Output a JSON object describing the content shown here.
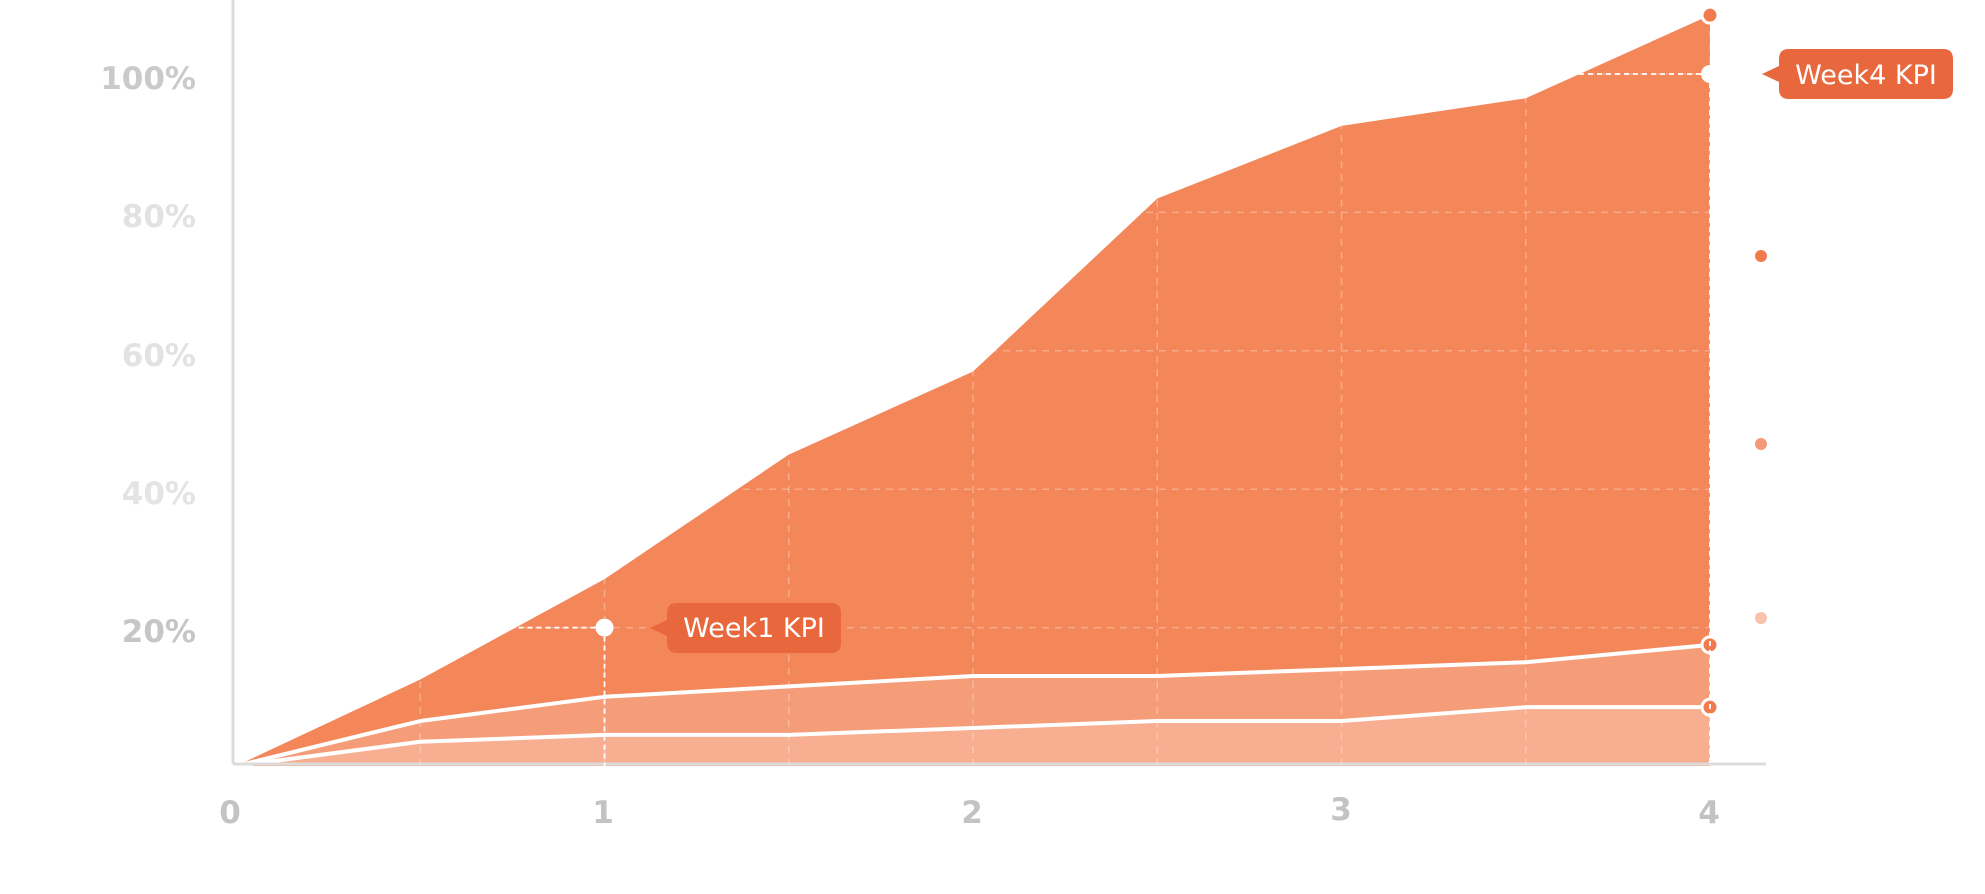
{
  "chart_data": {
    "type": "area",
    "x": [
      0,
      0.5,
      1,
      1.5,
      2,
      2.5,
      3,
      3.5,
      4
    ],
    "x_tick_labels": [
      "0",
      "1",
      "2",
      "3",
      "4"
    ],
    "y_tick_labels": [
      "20%",
      "40%",
      "60%",
      "80%",
      "100%"
    ],
    "ylim": [
      0,
      110
    ],
    "xlim": [
      0,
      4
    ],
    "grid": true,
    "series": [
      {
        "values": [
          0,
          12.5,
          27,
          45,
          57,
          82,
          92.5,
          96.5,
          108.5
        ],
        "color": "#f4875a"
      },
      {
        "values": [
          0,
          6.5,
          10,
          11.5,
          13,
          13,
          14,
          15,
          17.5
        ],
        "color": "#f59c78"
      },
      {
        "values": [
          0,
          3.5,
          4.5,
          4.5,
          5.5,
          6.5,
          6.5,
          8.5,
          8.5
        ],
        "color": "#f8ae90"
      }
    ],
    "annotations": [
      {
        "label": "Week1 KPI",
        "x": 1,
        "y": 20
      },
      {
        "label": "Week4 KPI",
        "x": 4,
        "y": 100
      }
    ],
    "colors": {
      "callout": "#e8673d",
      "accent_dot": "#f27b4e",
      "axis": "#dcdcdc",
      "tick_label": "#c3c3c3"
    }
  }
}
